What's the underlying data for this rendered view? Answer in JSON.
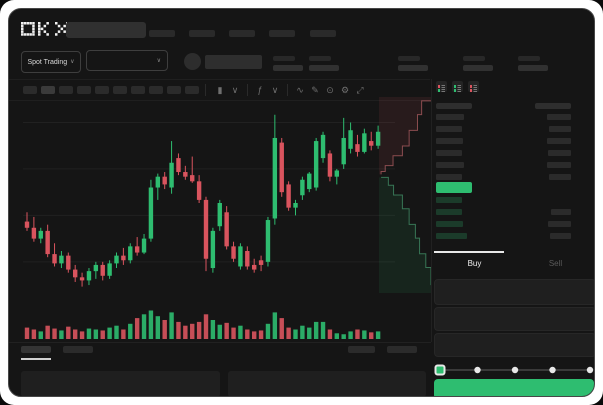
{
  "window": {
    "outer_bg": "#ffffff",
    "bg": "#151515",
    "border": "#474747"
  },
  "colors": {
    "green": "#2ebd70",
    "red": "#d9545e",
    "skeleton": "#2c2c2c",
    "dim_green_bar": "#1b3b2a",
    "icon": "#6f6f6f",
    "text": "#e8e8e8",
    "text_dim": "#5a5a5a",
    "panel": "#1f1f1f",
    "grid": "#212121"
  },
  "header": {
    "logo": "OKX",
    "nav_item_count": 5
  },
  "market_bar": {
    "market_type": "Spot Trading",
    "chevron": "∨",
    "stat_count": 5
  },
  "toolbar": {
    "timeframe_count": 10,
    "icons": [
      {
        "name": "candle-type-icon",
        "glyph": "▮"
      },
      {
        "name": "chevron-down-icon",
        "glyph": "∨"
      },
      {
        "name": "divider",
        "glyph": "|"
      },
      {
        "name": "indicator-icon",
        "glyph": "ƒ"
      },
      {
        "name": "chevron-down-icon",
        "glyph": "∨"
      },
      {
        "name": "divider",
        "glyph": "|"
      },
      {
        "name": "line-tool-icon",
        "glyph": "∿"
      },
      {
        "name": "draw-tool-icon",
        "glyph": "✎"
      },
      {
        "name": "snapshot-icon",
        "glyph": "⊙"
      },
      {
        "name": "settings-icon",
        "glyph": "⚙"
      },
      {
        "name": "fullscreen-icon",
        "glyph": "⤢"
      }
    ]
  },
  "order_book": {
    "toggles": [
      {
        "name": "orderbook-combined-view",
        "top": "#d9545e",
        "bottom": "#2ebd70"
      },
      {
        "name": "orderbook-bids-view",
        "top": "#2ebd70",
        "bottom": "#2ebd70"
      },
      {
        "name": "orderbook-asks-view",
        "top": "#d9545e",
        "bottom": "#d9545e"
      }
    ],
    "header": {
      "left_w": 36,
      "right_w": 36
    },
    "asks": [
      {
        "price_w": 28,
        "amount_w": 24
      },
      {
        "price_w": 26,
        "amount_w": 22
      },
      {
        "price_w": 27,
        "amount_w": 24
      },
      {
        "price_w": 26,
        "amount_w": 23
      },
      {
        "price_w": 28,
        "amount_w": 24
      },
      {
        "price_w": 26,
        "amount_w": 22
      }
    ],
    "last_price_bar": {
      "w": 36,
      "h": 11
    },
    "bids": [
      {
        "price_w": 26,
        "amount_w": 0
      },
      {
        "price_w": 26,
        "amount_w": 20
      },
      {
        "price_w": 27,
        "amount_w": 23
      },
      {
        "price_w": 31,
        "amount_w": 21
      }
    ]
  },
  "trade_panel": {
    "tabs": [
      {
        "label": "Buy",
        "active": true
      },
      {
        "label": "Sell",
        "active": false
      }
    ],
    "input_count": 3,
    "slider": {
      "stops": 5,
      "selected_index": 0
    }
  },
  "chart_data": {
    "type": "candlestick",
    "title": "",
    "xlabel": "",
    "ylabel": "",
    "axis_labels_visible": false,
    "ylim": [
      38,
      100
    ],
    "gridlines_y": [
      95,
      80,
      65,
      50
    ],
    "candles": [
      [
        63,
        66,
        60,
        61
      ],
      [
        61,
        64.5,
        56.5,
        57.5
      ],
      [
        57.5,
        61,
        56,
        60
      ],
      [
        60,
        62,
        51.5,
        52.5
      ],
      [
        52.5,
        56,
        48.5,
        49.5
      ],
      [
        49.5,
        53.5,
        48,
        52
      ],
      [
        52,
        53,
        46.5,
        47.5
      ],
      [
        47.5,
        49,
        43.5,
        45
      ],
      [
        45,
        46.5,
        42,
        44
      ],
      [
        44,
        48,
        42.5,
        47
      ],
      [
        47,
        50,
        44.5,
        49
      ],
      [
        49,
        50,
        44,
        45.5
      ],
      [
        45.5,
        50.5,
        44.5,
        49.5
      ],
      [
        49.5,
        53,
        48,
        52
      ],
      [
        52,
        54.5,
        49,
        50.5
      ],
      [
        50.5,
        56,
        49.5,
        55
      ],
      [
        55,
        58,
        52,
        53
      ],
      [
        53,
        59,
        52.5,
        57.5
      ],
      [
        57.5,
        76.5,
        56.5,
        74
      ],
      [
        74,
        78.5,
        70,
        77.5
      ],
      [
        77.5,
        79,
        73.5,
        75
      ],
      [
        74,
        89,
        72,
        82
      ],
      [
        83.5,
        85,
        78,
        79
      ],
      [
        79,
        81,
        76.5,
        77.5
      ],
      [
        78,
        84,
        75.5,
        76
      ],
      [
        76,
        78,
        69,
        70
      ],
      [
        70,
        71,
        47,
        51
      ],
      [
        48,
        61,
        46.5,
        60
      ],
      [
        61.5,
        70,
        60,
        69
      ],
      [
        66,
        68,
        54,
        55
      ],
      [
        55,
        56.5,
        50,
        51
      ],
      [
        48.5,
        56,
        47.5,
        55
      ],
      [
        53.5,
        55,
        47.5,
        48.5
      ],
      [
        49,
        51,
        46.5,
        47.5
      ],
      [
        50.5,
        52,
        47,
        49
      ],
      [
        50,
        64.5,
        48.5,
        63.5
      ],
      [
        64,
        97.5,
        62,
        90
      ],
      [
        88.5,
        90,
        71,
        72.5
      ],
      [
        75,
        76,
        66.5,
        67.5
      ],
      [
        67.5,
        70,
        65,
        69
      ],
      [
        71.5,
        77.5,
        70,
        76.5
      ],
      [
        73.5,
        79,
        72.5,
        78.5
      ],
      [
        74,
        90,
        73,
        89
      ],
      [
        83.5,
        92,
        82,
        91
      ],
      [
        85,
        86,
        76,
        77.5
      ],
      [
        77.5,
        80,
        75,
        79.5
      ],
      [
        81.5,
        96.5,
        80,
        90
      ],
      [
        86.5,
        95,
        85,
        92.5
      ],
      [
        88,
        91,
        84,
        85.5
      ],
      [
        85.5,
        93,
        85,
        91.5
      ],
      [
        89,
        92,
        86,
        87.5
      ],
      [
        87.5,
        94,
        86.5,
        92
      ]
    ],
    "volume": [
      12,
      10,
      8,
      14,
      11,
      9,
      13,
      10,
      8,
      11,
      10,
      9,
      12,
      14,
      10,
      16,
      22,
      26,
      30,
      24,
      20,
      28,
      18,
      14,
      16,
      18,
      26,
      20,
      15,
      17,
      12,
      14,
      10,
      8,
      9,
      16,
      28,
      22,
      12,
      10,
      14,
      12,
      18,
      18,
      10,
      6,
      5,
      8,
      10,
      9,
      7,
      8
    ],
    "depth": {
      "asks_line": [
        [
          1,
          0.02
        ],
        [
          0.82,
          0.09
        ],
        [
          0.74,
          0.17
        ],
        [
          0.58,
          0.25
        ],
        [
          0.45,
          0.3
        ],
        [
          0.27,
          0.35
        ],
        [
          0.12,
          0.38
        ],
        [
          0.04,
          0.395
        ]
      ],
      "bids_line": [
        [
          0.04,
          0.41
        ],
        [
          0.18,
          0.45
        ],
        [
          0.28,
          0.5
        ],
        [
          0.45,
          0.57
        ],
        [
          0.58,
          0.65
        ],
        [
          0.7,
          0.72
        ],
        [
          0.78,
          0.8
        ],
        [
          0.9,
          0.87
        ],
        [
          1,
          0.96
        ]
      ]
    }
  }
}
